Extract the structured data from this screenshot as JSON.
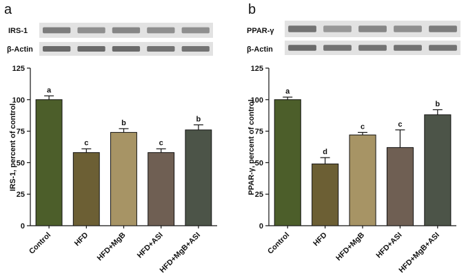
{
  "panels": [
    {
      "letter": "a",
      "blots": [
        {
          "label": "IRS-1",
          "band_intensity": [
            0.55,
            0.45,
            0.5,
            0.45,
            0.45
          ]
        },
        {
          "label": "β-Actin",
          "band_intensity": [
            0.65,
            0.65,
            0.65,
            0.6,
            0.6
          ]
        }
      ]
    },
    {
      "letter": "b",
      "blots": [
        {
          "label": "PPAR-γ",
          "band_intensity": [
            0.6,
            0.4,
            0.5,
            0.45,
            0.55
          ]
        },
        {
          "label": "β-Actin",
          "band_intensity": [
            0.65,
            0.6,
            0.6,
            0.6,
            0.6
          ]
        }
      ]
    }
  ],
  "colors": {
    "bars": [
      "#4c5e2a",
      "#6c5f34",
      "#a79465",
      "#6f5f53",
      "#4c5448"
    ],
    "blot_background": "#e2e2e2",
    "band": "#2a2a2a"
  },
  "chart_data": [
    {
      "type": "bar",
      "categories": [
        "Control",
        "HFD",
        "HFD+MgB",
        "HFD+ASI",
        "HFD+MgB+ASI"
      ],
      "values": [
        100,
        58,
        74,
        58,
        76
      ],
      "errors": [
        3,
        3,
        3,
        3,
        4
      ],
      "significance": [
        "a",
        "c",
        "b",
        "c",
        "b"
      ],
      "ylabel": "IRS-1, percent of control",
      "ylim": [
        0,
        125
      ],
      "yticks": [
        0,
        25,
        50,
        75,
        100,
        125
      ],
      "grid": false
    },
    {
      "type": "bar",
      "categories": [
        "Control",
        "HFD",
        "HFD+MgB",
        "HFD+ASI",
        "HFD+MgB+ASI"
      ],
      "values": [
        100,
        49,
        72,
        62,
        88
      ],
      "errors": [
        2,
        5,
        2,
        14,
        4
      ],
      "significance": [
        "a",
        "d",
        "c",
        "c",
        "b"
      ],
      "ylabel": "PPAR-γ, percent of control",
      "ylim": [
        0,
        125
      ],
      "yticks": [
        0,
        25,
        50,
        75,
        100,
        125
      ],
      "grid": false
    }
  ]
}
